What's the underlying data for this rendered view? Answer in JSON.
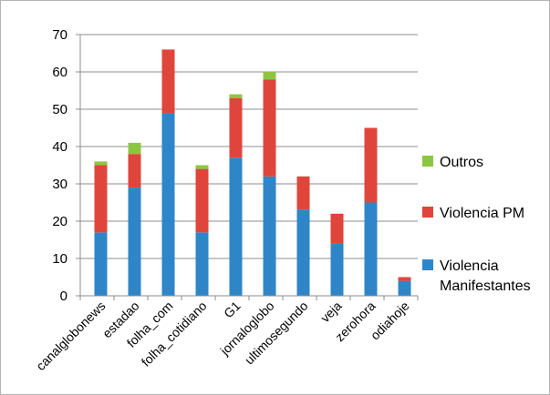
{
  "chart_data": {
    "type": "bar",
    "stacked": true,
    "title": "",
    "xlabel": "",
    "ylabel": "",
    "ylim": [
      0,
      70
    ],
    "yticks": [
      0,
      10,
      20,
      30,
      40,
      50,
      60,
      70
    ],
    "grid": "horizontal",
    "legend": "right",
    "categories": [
      "canalglobonews",
      "estadao",
      "folha_com",
      "folha_cotidiano",
      "G1",
      "jornaloglobo",
      "ultimosegundo",
      "veja",
      "zerohora",
      "odiahoje"
    ],
    "series": [
      {
        "name": "Violencia Manifestantes",
        "color": "#2e86c9",
        "values": [
          17,
          29,
          49,
          17,
          37,
          32,
          23,
          14,
          25,
          4
        ]
      },
      {
        "name": "Violencia PM",
        "color": "#e0453b",
        "values": [
          18,
          9,
          17,
          17,
          16,
          26,
          9,
          8,
          20,
          1
        ]
      },
      {
        "name": "Outros",
        "color": "#8cc63f",
        "values": [
          1,
          3,
          0,
          1,
          1,
          2,
          0,
          0,
          0,
          0
        ]
      }
    ],
    "legend_lines": [
      [
        "Outros"
      ],
      [
        "Violencia PM"
      ],
      [
        "Violencia",
        "Manifestantes"
      ]
    ]
  }
}
